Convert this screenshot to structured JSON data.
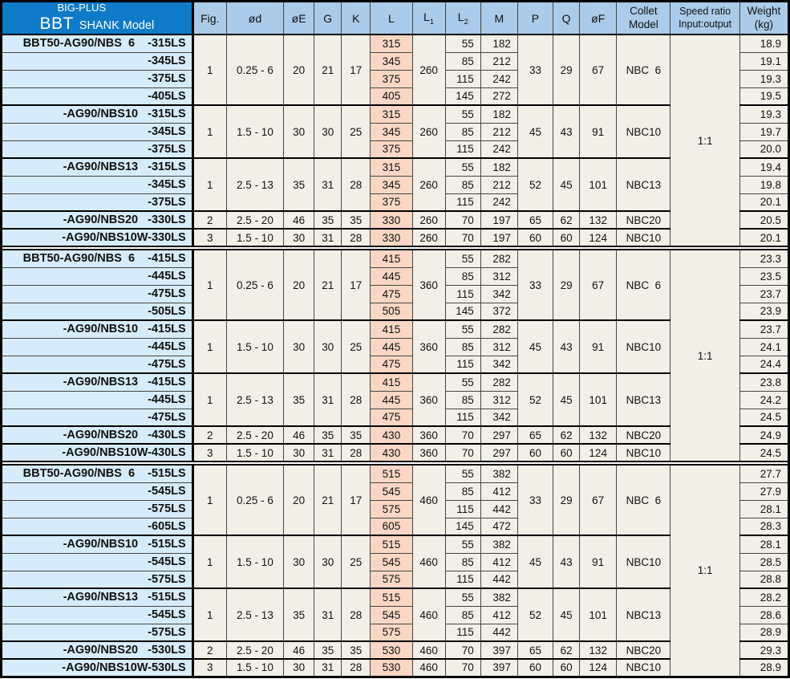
{
  "header": {
    "model": {
      "line1": "BIG-PLUS",
      "brand": "BBT",
      "suffix": "SHANK Model"
    },
    "cols": {
      "fig": "Fig.",
      "od": "ød",
      "oe": "øE",
      "g": "G",
      "k": "K",
      "l": "L",
      "l1_base": "L",
      "l1_sub": "1",
      "l2_base": "L",
      "l2_sub": "2",
      "m": "M",
      "p": "P",
      "q": "Q",
      "of": "øF",
      "collet1": "Collet",
      "collet2": "Model",
      "speed1": "Speed ratio",
      "speed2": "Input:output",
      "weight1": "Weight",
      "weight2": "(kg)"
    }
  },
  "colors": {
    "title_blue": "#0e7ac8",
    "column_header_blue": "#aacbe9",
    "model_column_blue": "#d7ecfa",
    "data_cream": "#f2f0e6",
    "l_column_salmon": "#f9d7c4"
  },
  "sections": [
    {
      "speed_ratio": "1:1",
      "groups": [
        {
          "fig": "1",
          "od": "0.25 - 6",
          "oe": "20",
          "g": "21",
          "k": "17",
          "l1": "260",
          "p": "33",
          "q": "29",
          "of": "67",
          "collet": "NBC  6",
          "rows": [
            {
              "model": "BBT50-AG90/NBS  6    -315LS",
              "l": "315",
              "l2": "55",
              "m": "182",
              "weight": "18.9"
            },
            {
              "model": "-345LS",
              "l": "345",
              "l2": "85",
              "m": "212",
              "weight": "19.1"
            },
            {
              "model": "-375LS",
              "l": "375",
              "l2": "115",
              "m": "242",
              "weight": "19.3"
            },
            {
              "model": "-405LS",
              "l": "405",
              "l2": "145",
              "m": "272",
              "weight": "19.5"
            }
          ]
        },
        {
          "fig": "1",
          "od": "1.5 - 10",
          "oe": "30",
          "g": "30",
          "k": "25",
          "l1": "260",
          "p": "45",
          "q": "43",
          "of": "91",
          "collet": "NBC10",
          "rows": [
            {
              "model": "-AG90/NBS10   -315LS",
              "l": "315",
              "l2": "55",
              "m": "182",
              "weight": "19.3"
            },
            {
              "model": "-345LS",
              "l": "345",
              "l2": "85",
              "m": "212",
              "weight": "19.7"
            },
            {
              "model": "-375LS",
              "l": "375",
              "l2": "115",
              "m": "242",
              "weight": "20.0"
            }
          ]
        },
        {
          "fig": "1",
          "od": "2.5 - 13",
          "oe": "35",
          "g": "31",
          "k": "28",
          "l1": "260",
          "p": "52",
          "q": "45",
          "of": "101",
          "collet": "NBC13",
          "rows": [
            {
              "model": "-AG90/NBS13   -315LS",
              "l": "315",
              "l2": "55",
              "m": "182",
              "weight": "19.4"
            },
            {
              "model": "-345LS",
              "l": "345",
              "l2": "85",
              "m": "212",
              "weight": "19.8"
            },
            {
              "model": "-375LS",
              "l": "375",
              "l2": "115",
              "m": "242",
              "weight": "20.1"
            }
          ]
        },
        {
          "fig": "2",
          "od": "2.5 - 20",
          "oe": "46",
          "g": "35",
          "k": "35",
          "l1": "260",
          "p": "65",
          "q": "62",
          "of": "132",
          "collet": "NBC20",
          "rows": [
            {
              "model": "-AG90/NBS20   -330LS",
              "l": "330",
              "l2": "70",
              "m": "197",
              "weight": "20.5"
            }
          ]
        },
        {
          "fig": "3",
          "od": "1.5 - 10",
          "oe": "30",
          "g": "31",
          "k": "28",
          "l1": "260",
          "p": "60",
          "q": "60",
          "of": "124",
          "collet": "NBC10",
          "rows": [
            {
              "model": "-AG90/NBS10W-330LS",
              "l": "330",
              "l2": "70",
              "m": "197",
              "weight": "20.1"
            }
          ]
        }
      ]
    },
    {
      "speed_ratio": "1:1",
      "groups": [
        {
          "fig": "1",
          "od": "0.25 - 6",
          "oe": "20",
          "g": "21",
          "k": "17",
          "l1": "360",
          "p": "33",
          "q": "29",
          "of": "67",
          "collet": "NBC  6",
          "rows": [
            {
              "model": "BBT50-AG90/NBS  6    -415LS",
              "l": "415",
              "l2": "55",
              "m": "282",
              "weight": "23.3"
            },
            {
              "model": "-445LS",
              "l": "445",
              "l2": "85",
              "m": "312",
              "weight": "23.5"
            },
            {
              "model": "-475LS",
              "l": "475",
              "l2": "115",
              "m": "342",
              "weight": "23.7"
            },
            {
              "model": "-505LS",
              "l": "505",
              "l2": "145",
              "m": "372",
              "weight": "23.9"
            }
          ]
        },
        {
          "fig": "1",
          "od": "1.5 - 10",
          "oe": "30",
          "g": "30",
          "k": "25",
          "l1": "360",
          "p": "45",
          "q": "43",
          "of": "91",
          "collet": "NBC10",
          "rows": [
            {
              "model": "-AG90/NBS10   -415LS",
              "l": "415",
              "l2": "55",
              "m": "282",
              "weight": "23.7"
            },
            {
              "model": "-445LS",
              "l": "445",
              "l2": "85",
              "m": "312",
              "weight": "24.1"
            },
            {
              "model": "-475LS",
              "l": "475",
              "l2": "115",
              "m": "342",
              "weight": "24.4"
            }
          ]
        },
        {
          "fig": "1",
          "od": "2.5 - 13",
          "oe": "35",
          "g": "31",
          "k": "28",
          "l1": "360",
          "p": "52",
          "q": "45",
          "of": "101",
          "collet": "NBC13",
          "rows": [
            {
              "model": "-AG90/NBS13   -415LS",
              "l": "415",
              "l2": "55",
              "m": "282",
              "weight": "23.8"
            },
            {
              "model": "-445LS",
              "l": "445",
              "l2": "85",
              "m": "312",
              "weight": "24.2"
            },
            {
              "model": "-475LS",
              "l": "475",
              "l2": "115",
              "m": "342",
              "weight": "24.5"
            }
          ]
        },
        {
          "fig": "2",
          "od": "2.5 - 20",
          "oe": "46",
          "g": "35",
          "k": "35",
          "l1": "360",
          "p": "65",
          "q": "62",
          "of": "132",
          "collet": "NBC20",
          "rows": [
            {
              "model": "-AG90/NBS20   -430LS",
              "l": "430",
              "l2": "70",
              "m": "297",
              "weight": "24.9"
            }
          ]
        },
        {
          "fig": "3",
          "od": "1.5 - 10",
          "oe": "30",
          "g": "31",
          "k": "28",
          "l1": "360",
          "p": "60",
          "q": "60",
          "of": "124",
          "collet": "NBC10",
          "rows": [
            {
              "model": "-AG90/NBS10W-430LS",
              "l": "430",
              "l2": "70",
              "m": "297",
              "weight": "24.5"
            }
          ]
        }
      ]
    },
    {
      "speed_ratio": "1:1",
      "groups": [
        {
          "fig": "1",
          "od": "0.25 - 6",
          "oe": "20",
          "g": "21",
          "k": "17",
          "l1": "460",
          "p": "33",
          "q": "29",
          "of": "67",
          "collet": "NBC  6",
          "rows": [
            {
              "model": "BBT50-AG90/NBS  6    -515LS",
              "l": "515",
              "l2": "55",
              "m": "382",
              "weight": "27.7"
            },
            {
              "model": "-545LS",
              "l": "545",
              "l2": "85",
              "m": "412",
              "weight": "27.9"
            },
            {
              "model": "-575LS",
              "l": "575",
              "l2": "115",
              "m": "442",
              "weight": "28.1"
            },
            {
              "model": "-605LS",
              "l": "605",
              "l2": "145",
              "m": "472",
              "weight": "28.3"
            }
          ]
        },
        {
          "fig": "1",
          "od": "1.5 - 10",
          "oe": "30",
          "g": "30",
          "k": "25",
          "l1": "460",
          "p": "45",
          "q": "43",
          "of": "91",
          "collet": "NBC10",
          "rows": [
            {
              "model": "-AG90/NBS10   -515LS",
              "l": "515",
              "l2": "55",
              "m": "382",
              "weight": "28.1"
            },
            {
              "model": "-545LS",
              "l": "545",
              "l2": "85",
              "m": "412",
              "weight": "28.5"
            },
            {
              "model": "-575LS",
              "l": "575",
              "l2": "115",
              "m": "442",
              "weight": "28.8"
            }
          ]
        },
        {
          "fig": "1",
          "od": "2.5 - 13",
          "oe": "35",
          "g": "31",
          "k": "28",
          "l1": "460",
          "p": "52",
          "q": "45",
          "of": "101",
          "collet": "NBC13",
          "rows": [
            {
              "model": "-AG90/NBS13   -515LS",
              "l": "515",
              "l2": "55",
              "m": "382",
              "weight": "28.2"
            },
            {
              "model": "-545LS",
              "l": "545",
              "l2": "85",
              "m": "412",
              "weight": "28.6"
            },
            {
              "model": "-575LS",
              "l": "575",
              "l2": "115",
              "m": "442",
              "weight": "28.9"
            }
          ]
        },
        {
          "fig": "2",
          "od": "2.5 - 20",
          "oe": "46",
          "g": "35",
          "k": "35",
          "l1": "460",
          "p": "65",
          "q": "62",
          "of": "132",
          "collet": "NBC20",
          "rows": [
            {
              "model": "-AG90/NBS20   -530LS",
              "l": "530",
              "l2": "70",
              "m": "397",
              "weight": "29.3"
            }
          ]
        },
        {
          "fig": "3",
          "od": "1.5 - 10",
          "oe": "30",
          "g": "31",
          "k": "28",
          "l1": "460",
          "p": "60",
          "q": "60",
          "of": "124",
          "collet": "NBC10",
          "rows": [
            {
              "model": "-AG90/NBS10W-530LS",
              "l": "530",
              "l2": "70",
              "m": "397",
              "weight": "28.9"
            }
          ]
        }
      ]
    }
  ]
}
